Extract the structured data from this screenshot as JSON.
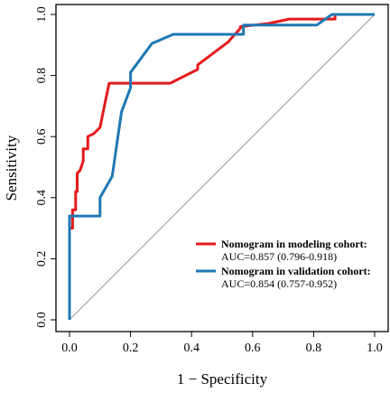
{
  "chart_data": {
    "type": "line",
    "title": "",
    "xlabel": "1 − Specificity",
    "ylabel": "Sensitivity",
    "xlim": [
      0,
      1
    ],
    "ylim": [
      0,
      1
    ],
    "x_ticks": [
      "0.0",
      "0.2",
      "0.4",
      "0.6",
      "0.8",
      "1.0"
    ],
    "y_ticks": [
      "0.0",
      "0.2",
      "0.4",
      "0.6",
      "0.8",
      "1.0"
    ],
    "grid": false,
    "legend_position": "bottom-right",
    "reference_line": {
      "x": [
        0,
        1
      ],
      "y": [
        0,
        1
      ],
      "color": "#999999"
    },
    "series": [
      {
        "name": "Nomogram in modeling cohort:",
        "sub": "AUC=0.857 (0.796-0.918)",
        "color": "#e41a1c",
        "points": [
          [
            0.0,
            0.0
          ],
          [
            0.0,
            0.3
          ],
          [
            0.01,
            0.3
          ],
          [
            0.01,
            0.36
          ],
          [
            0.02,
            0.36
          ],
          [
            0.02,
            0.42
          ],
          [
            0.025,
            0.42
          ],
          [
            0.025,
            0.48
          ],
          [
            0.035,
            0.49
          ],
          [
            0.045,
            0.52
          ],
          [
            0.045,
            0.56
          ],
          [
            0.06,
            0.56
          ],
          [
            0.06,
            0.6
          ],
          [
            0.08,
            0.61
          ],
          [
            0.09,
            0.62
          ],
          [
            0.1,
            0.63
          ],
          [
            0.11,
            0.68
          ],
          [
            0.13,
            0.775
          ],
          [
            0.33,
            0.775
          ],
          [
            0.42,
            0.82
          ],
          [
            0.42,
            0.835
          ],
          [
            0.52,
            0.91
          ],
          [
            0.56,
            0.955
          ],
          [
            0.56,
            0.96
          ],
          [
            0.65,
            0.97
          ],
          [
            0.72,
            0.985
          ],
          [
            0.87,
            0.985
          ],
          [
            0.87,
            1.0
          ],
          [
            1.0,
            1.0
          ]
        ]
      },
      {
        "name": "Nomogram in validation cohort:",
        "sub": "AUC=0.854 (0.757-0.952)",
        "color": "#1f78b4",
        "points": [
          [
            0.0,
            0.0
          ],
          [
            0.0,
            0.34
          ],
          [
            0.1,
            0.34
          ],
          [
            0.1,
            0.4
          ],
          [
            0.14,
            0.47
          ],
          [
            0.17,
            0.68
          ],
          [
            0.2,
            0.76
          ],
          [
            0.2,
            0.81
          ],
          [
            0.27,
            0.905
          ],
          [
            0.34,
            0.935
          ],
          [
            0.57,
            0.935
          ],
          [
            0.57,
            0.965
          ],
          [
            0.81,
            0.965
          ],
          [
            0.86,
            1.0
          ],
          [
            1.0,
            1.0
          ]
        ]
      }
    ]
  }
}
